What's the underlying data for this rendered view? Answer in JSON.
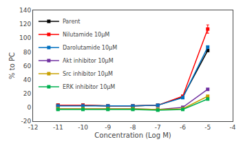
{
  "chart_data": {
    "type": "line",
    "xlabel": "Concentration (Log M)",
    "ylabel": "% to PC",
    "x": [
      -11,
      -10,
      -9,
      -8,
      -7,
      -6,
      -5
    ],
    "series": [
      {
        "name": "Parent",
        "color": "#000000",
        "marker": "square",
        "values": [
          3,
          3,
          2,
          2,
          3,
          15,
          82
        ]
      },
      {
        "name": "Nilutamide 10μM",
        "color": "#ff0000",
        "marker": "square",
        "values": [
          3,
          3,
          2,
          2,
          3,
          16,
          113
        ],
        "yerr": [
          1,
          1,
          0.5,
          0.5,
          0.5,
          1,
          6
        ]
      },
      {
        "name": "Darolutamide 10μM",
        "color": "#0070c0",
        "marker": "square",
        "values": [
          2,
          2,
          2,
          2,
          3,
          14,
          87
        ]
      },
      {
        "name": "Akt inhibitor 10μM",
        "color": "#7030a0",
        "marker": "square",
        "values": [
          -2,
          -2,
          -2,
          -2,
          -3,
          0,
          26
        ]
      },
      {
        "name": "Src inhibitor 10μM",
        "color": "#c8a000",
        "marker": "square",
        "values": [
          -2,
          -2,
          -2,
          -2,
          -3,
          -2,
          16
        ]
      },
      {
        "name": "ERK inhibitor 10μM",
        "color": "#00b050",
        "marker": "square",
        "values": [
          -3,
          -3,
          -3,
          -3,
          -4,
          -3,
          12
        ]
      }
    ],
    "xlim": [
      -12,
      -4
    ],
    "ylim": [
      -20,
      140
    ],
    "xticks": [
      -12,
      -11,
      -10,
      -9,
      -8,
      -7,
      -6,
      -5,
      -4
    ],
    "yticks": [
      -20,
      0,
      20,
      40,
      60,
      80,
      100,
      120,
      140
    ],
    "legend": "upper left",
    "grid": false
  }
}
